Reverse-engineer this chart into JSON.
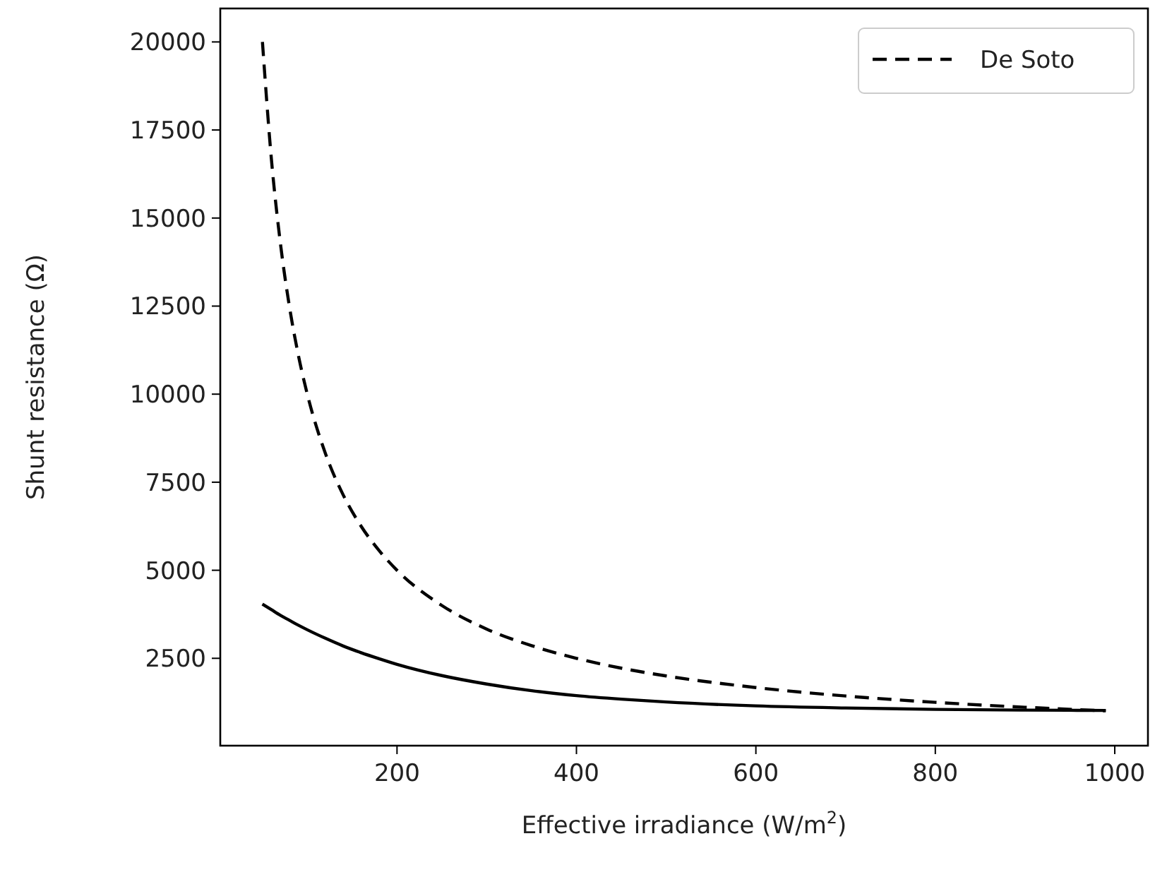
{
  "chart_data": {
    "type": "line",
    "xlabel": "Effective irradiance (W/m$^{2}$)",
    "ylabel": "Shunt resistance (Ω)",
    "x": [
      50,
      60,
      70,
      80,
      90,
      100,
      120,
      140,
      160,
      180,
      200,
      250,
      300,
      350,
      400,
      450,
      500,
      600,
      700,
      800,
      900,
      990
    ],
    "series": [
      {
        "color": "#000000",
        "line_style": "solid",
        "values": [
          4040,
          3880,
          3720,
          3580,
          3440,
          3310,
          3070,
          2850,
          2660,
          2490,
          2330,
          2010,
          1770,
          1580,
          1440,
          1340,
          1260,
          1150,
          1090,
          1050,
          1030,
          1020
        ]
      },
      {
        "name": "De Soto",
        "color": "#000000",
        "line_style": "dashed",
        "values": [
          20000,
          16670,
          14290,
          12500,
          11110,
          10000,
          8330,
          7140,
          6250,
          5560,
          5000,
          4000,
          3330,
          2860,
          2500,
          2220,
          2000,
          1670,
          1430,
          1250,
          1110,
          1010
        ]
      }
    ],
    "xlim": [
      3,
      1037
    ],
    "ylim": [
      20,
      20950
    ],
    "xticks": [
      200,
      400,
      600,
      800,
      1000
    ],
    "yticks": [
      2500,
      5000,
      7500,
      10000,
      12500,
      15000,
      17500,
      20000
    ],
    "grid": false,
    "legend": "top right",
    "marker": "none"
  }
}
